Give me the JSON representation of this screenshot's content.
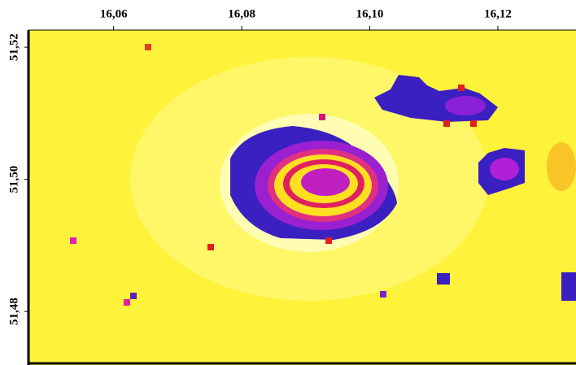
{
  "chart_data": {
    "type": "raster",
    "xlim": [
      16.0467,
      16.1322
    ],
    "ylim": [
      51.4719,
      51.5226
    ],
    "xticks": [
      {
        "value": 16.06,
        "label": "16,06"
      },
      {
        "value": 16.08,
        "label": "16,08"
      },
      {
        "value": 16.1,
        "label": "16,10"
      },
      {
        "value": 16.12,
        "label": "16,12"
      }
    ],
    "yticks": [
      {
        "value": 51.48,
        "label": "51,48"
      },
      {
        "value": 51.5,
        "label": "51,50"
      },
      {
        "value": 51.52,
        "label": "51,52"
      }
    ]
  }
}
